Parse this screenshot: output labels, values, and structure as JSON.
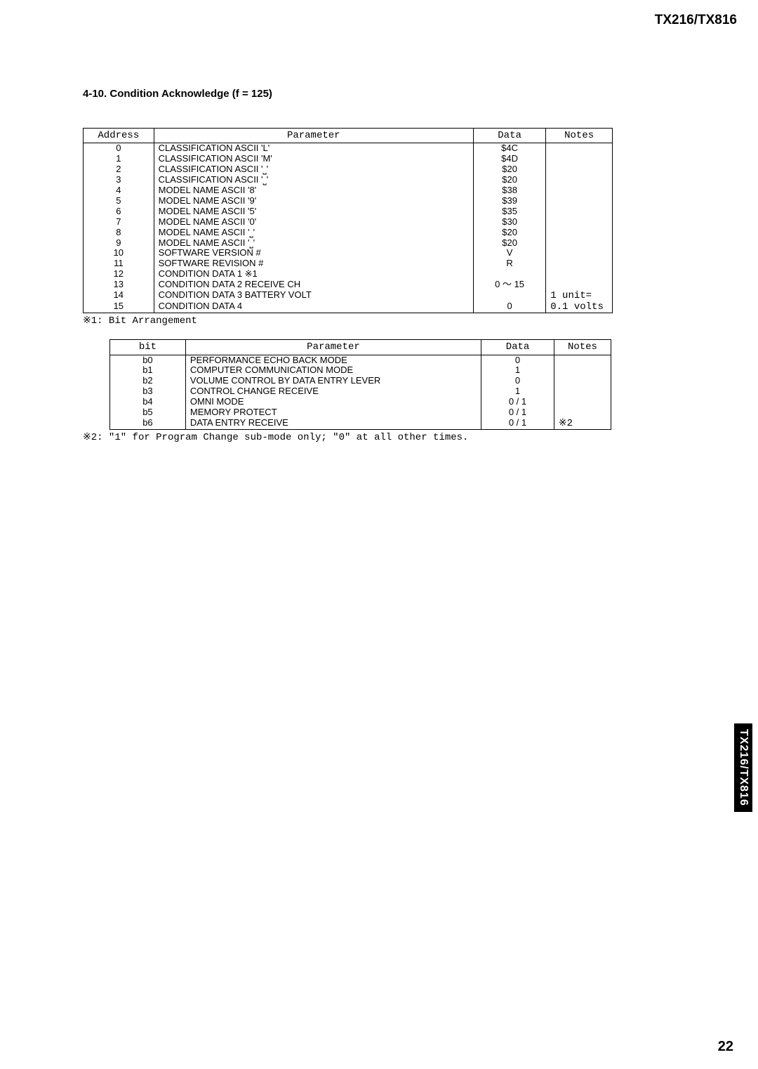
{
  "page": {
    "header_model": "TX216/TX816",
    "section_title": "4-10. Condition Acknowledge (f = 125)",
    "page_number": "22",
    "side_label": "TX216/TX816"
  },
  "table1": {
    "headers": [
      "Address",
      "Parameter",
      "Data",
      "Notes"
    ],
    "rows": [
      {
        "addr": "0",
        "param": "CLASSIFICATION ASCII 'L'",
        "data": "$4C",
        "notes": ""
      },
      {
        "addr": "1",
        "param": "CLASSIFICATION ASCII 'M'",
        "data": "$4D",
        "notes": ""
      },
      {
        "addr": "2",
        "param": "CLASSIFICATION ASCII '⎵'",
        "data": "$20",
        "notes": ""
      },
      {
        "addr": "3",
        "param": "CLASSIFICATION ASCII '⎵'",
        "data": "$20",
        "notes": ""
      },
      {
        "addr": "4",
        "param": "MODEL NAME ASCII '8'",
        "data": "$38",
        "notes": ""
      },
      {
        "addr": "5",
        "param": "MODEL NAME ASCII '9'",
        "data": "$39",
        "notes": ""
      },
      {
        "addr": "6",
        "param": "MODEL NAME ASCII '5'",
        "data": "$35",
        "notes": ""
      },
      {
        "addr": "7",
        "param": "MODEL NAME ASCII '0'",
        "data": "$30",
        "notes": ""
      },
      {
        "addr": "8",
        "param": "MODEL NAME ASCII '⎵'",
        "data": "$20",
        "notes": ""
      },
      {
        "addr": "9",
        "param": "MODEL NAME ASCII '⎵'",
        "data": "$20",
        "notes": ""
      },
      {
        "addr": "10",
        "param": "SOFTWARE VERSION #",
        "data": "V",
        "notes": ""
      },
      {
        "addr": "11",
        "param": "SOFTWARE REVISION #",
        "data": "R",
        "notes": ""
      },
      {
        "addr": "12",
        "param": "CONDITION DATA 1  ※1",
        "data": "",
        "notes": ""
      },
      {
        "addr": "13",
        "param": "CONDITION DATA 2 RECEIVE CH",
        "data": "0 ～ 15",
        "notes": ""
      },
      {
        "addr": "14",
        "param": "CONDITION DATA 3 BATTERY VOLT",
        "data": "",
        "notes": "1 unit="
      },
      {
        "addr": "15",
        "param": "CONDITION DATA 4",
        "data": "0",
        "notes": "0.1 volts"
      }
    ]
  },
  "footnote1": "※1: Bit Arrangement",
  "table2": {
    "headers": [
      "bit",
      "Parameter",
      "Data",
      "Notes"
    ],
    "rows": [
      {
        "bit": "b0",
        "param": "PERFORMANCE ECHO BACK MODE",
        "data": "0",
        "notes": ""
      },
      {
        "bit": "b1",
        "param": "COMPUTER COMMUNICATION MODE",
        "data": "1",
        "notes": ""
      },
      {
        "bit": "b2",
        "param": "VOLUME CONTROL BY DATA ENTRY LEVER",
        "data": "0",
        "notes": ""
      },
      {
        "bit": "b3",
        "param": "CONTROL CHANGE RECEIVE",
        "data": "1",
        "notes": ""
      },
      {
        "bit": "b4",
        "param": "OMNI MODE",
        "data": "0 / 1",
        "notes": ""
      },
      {
        "bit": "b5",
        "param": "MEMORY PROTECT",
        "data": "0 / 1",
        "notes": ""
      },
      {
        "bit": "b6",
        "param": "DATA ENTRY RECEIVE",
        "data": "0 / 1",
        "notes": "※2"
      }
    ]
  },
  "footnote2": "※2: \"1\" for Program Change sub-mode only; \"0\" at all other times."
}
